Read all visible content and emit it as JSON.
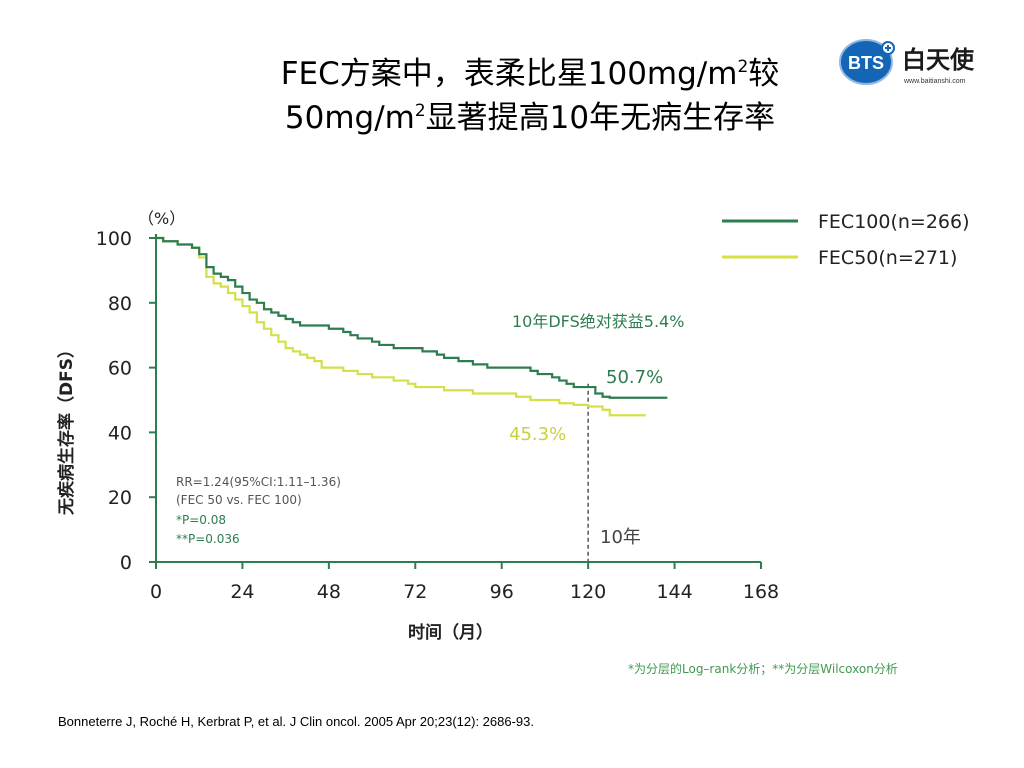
{
  "title": {
    "line1_prefix": "FEC方案中，表柔比星100mg/m",
    "line1_sup": "2",
    "line1_suffix": "较",
    "line2_prefix": "50mg/m",
    "line2_sup": "2",
    "line2_suffix": "显著提高10年无病生存率"
  },
  "logo": {
    "badge_text": "BTS",
    "name": "白天使",
    "url": "www.baitianshi.com",
    "colors": {
      "badge": "#1565b6",
      "name": "#1a1a1a"
    }
  },
  "chart_data": {
    "type": "line",
    "ylabel": "无疾病生存率（DFS）",
    "yunit": "（%）",
    "xlabel": "时间（月）",
    "xlim": [
      0,
      168
    ],
    "ylim": [
      0,
      100
    ],
    "xticks": [
      0,
      24,
      48,
      72,
      96,
      120,
      144,
      168
    ],
    "yticks": [
      0,
      20,
      40,
      60,
      80,
      100
    ],
    "grid": false,
    "legend": "top-right",
    "series": [
      {
        "name": "FEC100(n=266)",
        "color": "#2e7d4f",
        "points": [
          [
            0,
            100
          ],
          [
            2,
            99
          ],
          [
            6,
            98
          ],
          [
            10,
            97
          ],
          [
            12,
            95
          ],
          [
            14,
            91
          ],
          [
            16,
            89
          ],
          [
            18,
            88
          ],
          [
            20,
            87
          ],
          [
            22,
            85
          ],
          [
            24,
            83
          ],
          [
            26,
            81
          ],
          [
            28,
            80
          ],
          [
            30,
            78
          ],
          [
            32,
            77
          ],
          [
            34,
            76
          ],
          [
            36,
            75
          ],
          [
            38,
            74
          ],
          [
            40,
            73
          ],
          [
            44,
            73
          ],
          [
            48,
            72
          ],
          [
            52,
            71
          ],
          [
            54,
            70
          ],
          [
            56,
            69
          ],
          [
            60,
            68
          ],
          [
            62,
            67
          ],
          [
            64,
            67
          ],
          [
            66,
            66
          ],
          [
            70,
            66
          ],
          [
            74,
            65
          ],
          [
            78,
            64
          ],
          [
            80,
            63
          ],
          [
            84,
            62
          ],
          [
            88,
            61
          ],
          [
            92,
            60
          ],
          [
            100,
            60
          ],
          [
            104,
            59
          ],
          [
            106,
            58
          ],
          [
            110,
            57
          ],
          [
            112,
            56
          ],
          [
            114,
            55
          ],
          [
            116,
            54
          ],
          [
            120,
            54
          ],
          [
            122,
            52
          ],
          [
            124,
            51
          ],
          [
            126,
            50.7
          ],
          [
            142,
            50.7
          ]
        ]
      },
      {
        "name": "FEC50(n=271)",
        "color": "#d4e04a",
        "points": [
          [
            0,
            100
          ],
          [
            2,
            99
          ],
          [
            6,
            98
          ],
          [
            10,
            97
          ],
          [
            12,
            94
          ],
          [
            14,
            88
          ],
          [
            16,
            86
          ],
          [
            18,
            85
          ],
          [
            20,
            83
          ],
          [
            22,
            81
          ],
          [
            24,
            79
          ],
          [
            26,
            77
          ],
          [
            28,
            74
          ],
          [
            30,
            72
          ],
          [
            32,
            70
          ],
          [
            34,
            68
          ],
          [
            36,
            66
          ],
          [
            38,
            65
          ],
          [
            40,
            64
          ],
          [
            42,
            63
          ],
          [
            44,
            62
          ],
          [
            46,
            60
          ],
          [
            48,
            60
          ],
          [
            52,
            59
          ],
          [
            56,
            58
          ],
          [
            60,
            57
          ],
          [
            64,
            57
          ],
          [
            66,
            56
          ],
          [
            70,
            55
          ],
          [
            72,
            54
          ],
          [
            76,
            54
          ],
          [
            80,
            53
          ],
          [
            84,
            53
          ],
          [
            88,
            52
          ],
          [
            96,
            52
          ],
          [
            100,
            51
          ],
          [
            104,
            50
          ],
          [
            108,
            50
          ],
          [
            112,
            49
          ],
          [
            116,
            48.5
          ],
          [
            120,
            48
          ],
          [
            124,
            47
          ],
          [
            126,
            45.3
          ],
          [
            136,
            45.3
          ]
        ]
      }
    ],
    "annotations": {
      "dfs_gain": "10年DFS绝对获益5.4%",
      "fec100_value": "50.7%",
      "fec50_value": "45.3%",
      "ten_year": "10年",
      "ten_year_x": 120
    },
    "stats": [
      "RR=1.24(95%CI:1.11–1.36)",
      "(FEC 50 vs. FEC 100)",
      "*P=0.08",
      "**P=0.036"
    ]
  },
  "stat_note": "*为分层的Log–rank分析；**为分层Wilcoxon分析",
  "footnote": "Bonneterre J, Roché H, Kerbrat P, et al. J Clin oncol. 2005 Apr 20;23(12): 2686-93."
}
